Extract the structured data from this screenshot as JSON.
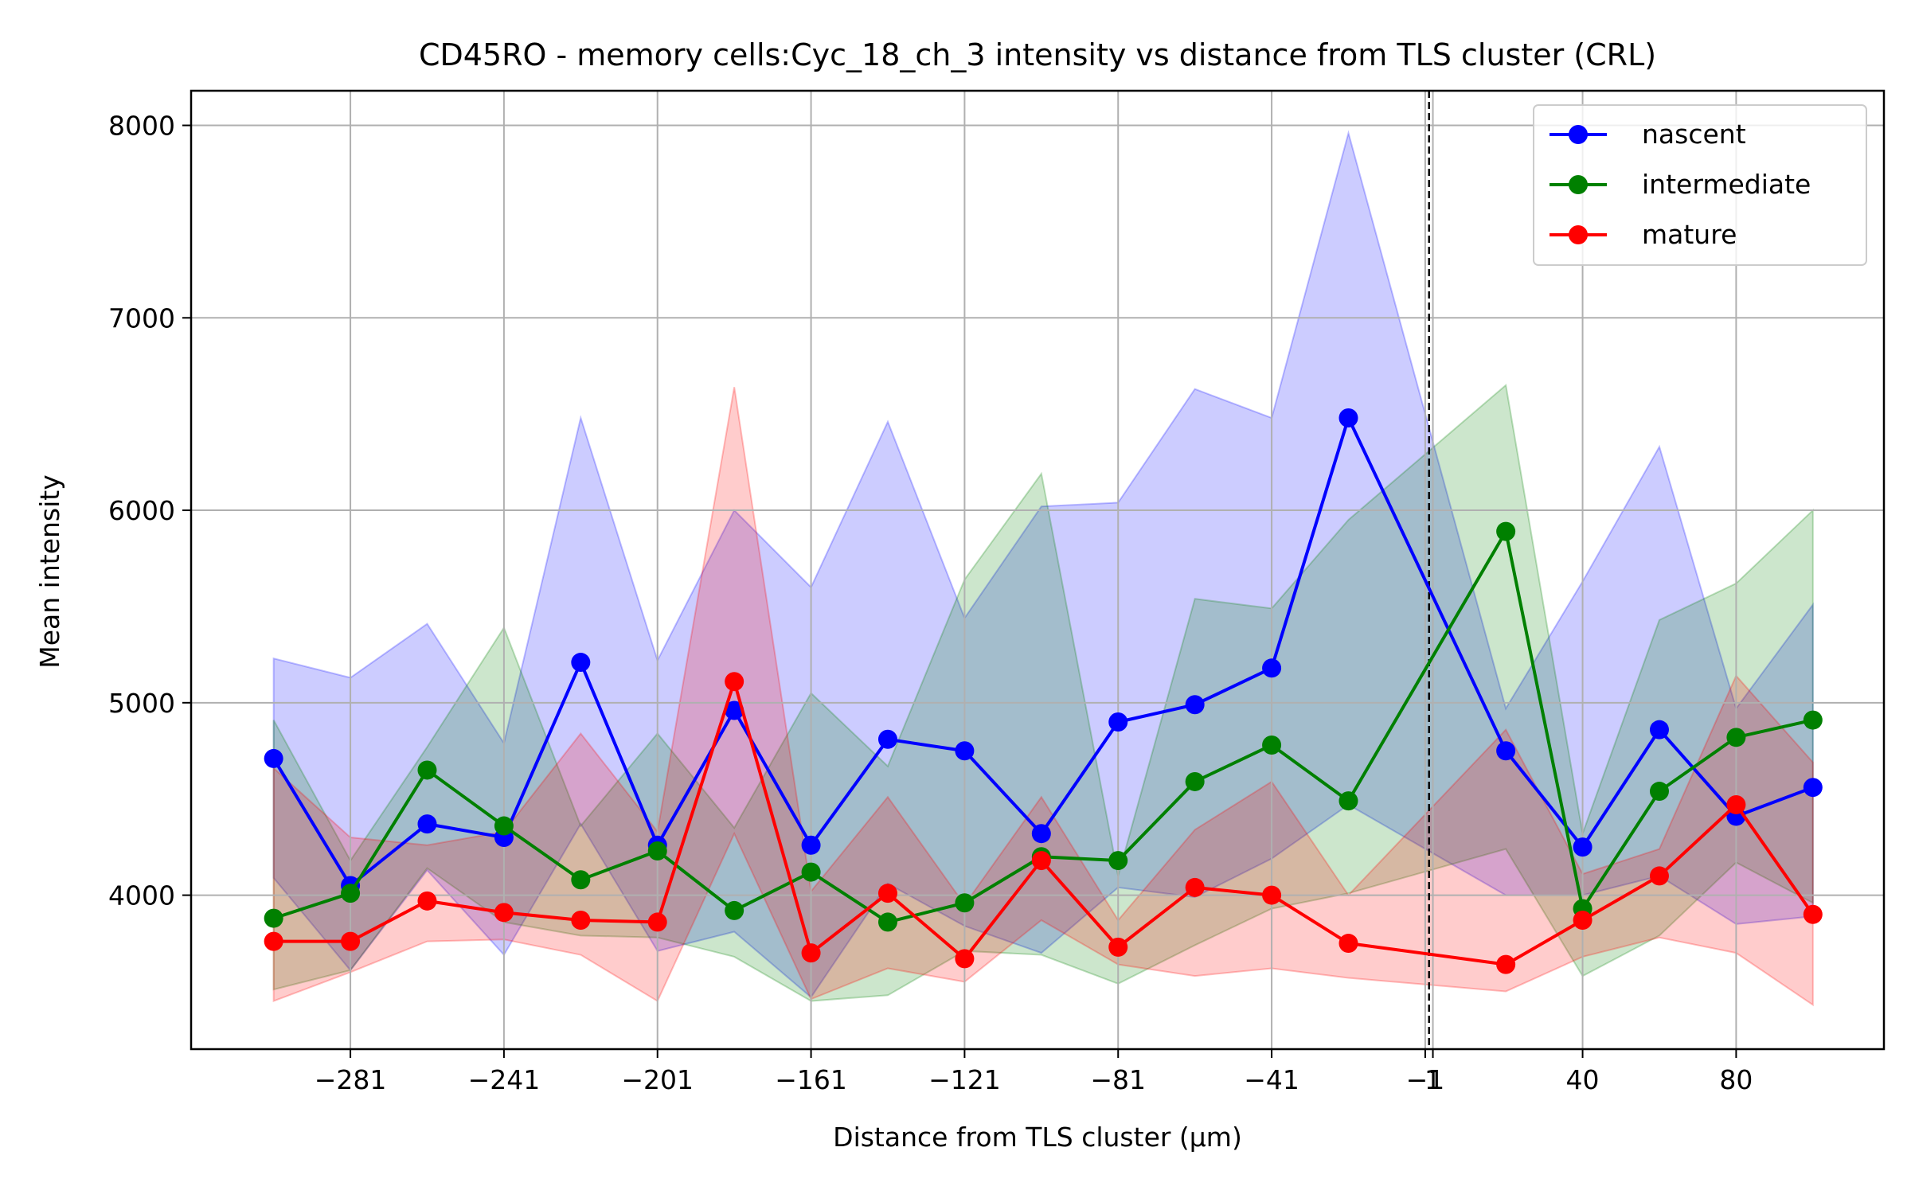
{
  "chart_data": {
    "type": "line",
    "title": "CD45RO - memory cells:Cyc_18_ch_3 intensity vs distance from TLS cluster (CRL)",
    "xlabel": "Distance from TLS cluster (μm)",
    "ylabel": "Mean intensity",
    "xlim": [
      -322.5,
      118.5
    ],
    "ylim": [
      3200,
      8180
    ],
    "x_ticks": [
      -281,
      -241,
      -201,
      -161,
      -121,
      -81,
      -41,
      -1,
      1,
      40,
      80
    ],
    "x_tick_labels": [
      "−281",
      "−241",
      "−201",
      "−161",
      "−121",
      "−81",
      "−41",
      "−1",
      "1",
      "40",
      "80"
    ],
    "y_ticks": [
      4000,
      5000,
      6000,
      7000,
      8000
    ],
    "y_tick_labels": [
      "4000",
      "5000",
      "6000",
      "7000",
      "8000"
    ],
    "grid": true,
    "vline_x": 0,
    "legend_position": "top-right",
    "series": [
      {
        "name": "nascent",
        "color": "#0000ff",
        "x": [
          -301,
          -281,
          -261,
          -241,
          -221,
          -201,
          -181,
          -161,
          -141,
          -121,
          -101,
          -81,
          -61,
          -41,
          -21,
          20,
          40,
          60,
          80,
          100
        ],
        "values": [
          4710,
          4050,
          4370,
          4300,
          5210,
          4260,
          4960,
          4260,
          4810,
          4750,
          4320,
          4900,
          4990,
          5180,
          6480,
          4750,
          4250,
          4860,
          4410,
          4560
        ],
        "upper": [
          5230,
          5130,
          5410,
          4790,
          6480,
          5220,
          6000,
          5600,
          6460,
          5440,
          6020,
          6040,
          6630,
          6480,
          7960,
          4970,
          5630,
          6330,
          4970,
          5510
        ],
        "lower": [
          4090,
          3610,
          4130,
          3690,
          4370,
          3710,
          3810,
          3470,
          4060,
          3840,
          3700,
          4040,
          3990,
          4190,
          4470,
          4000,
          4000,
          4100,
          3850,
          3890
        ]
      },
      {
        "name": "intermediate",
        "color": "#008000",
        "x": [
          -301,
          -281,
          -261,
          -241,
          -221,
          -201,
          -181,
          -161,
          -141,
          -121,
          -101,
          -81,
          -61,
          -41,
          -21,
          20,
          40,
          60,
          80,
          100
        ],
        "values": [
          3880,
          4010,
          4650,
          4360,
          4080,
          4230,
          3920,
          4120,
          3860,
          3960,
          4200,
          4180,
          4590,
          4780,
          4490,
          5890,
          3930,
          4540,
          4820,
          4910
        ],
        "upper": [
          4910,
          4180,
          4770,
          5390,
          4360,
          4840,
          4350,
          5050,
          4670,
          5640,
          6190,
          4100,
          5540,
          5490,
          5950,
          6650,
          4320,
          5430,
          5620,
          6000
        ],
        "lower": [
          3510,
          3610,
          4140,
          3860,
          3790,
          3780,
          3680,
          3450,
          3480,
          3710,
          3690,
          3540,
          3740,
          3930,
          4010,
          4240,
          3580,
          3790,
          4170,
          3960
        ]
      },
      {
        "name": "mature",
        "color": "#ff0000",
        "x": [
          -301,
          -281,
          -261,
          -241,
          -221,
          -201,
          -181,
          -161,
          -141,
          -121,
          -101,
          -81,
          -61,
          -41,
          -21,
          20,
          40,
          60,
          80,
          100
        ],
        "values": [
          3760,
          3760,
          3970,
          3910,
          3870,
          3860,
          5110,
          3700,
          4010,
          3670,
          4180,
          3730,
          4040,
          4000,
          3750,
          3640,
          3870,
          4100,
          4470,
          3900
        ],
        "upper": [
          4660,
          4300,
          4260,
          4330,
          4840,
          4330,
          6640,
          4020,
          4510,
          3950,
          4510,
          3870,
          4340,
          4590,
          4000,
          4860,
          4110,
          4240,
          5140,
          4690
        ],
        "lower": [
          3450,
          3600,
          3760,
          3770,
          3690,
          3450,
          4320,
          3460,
          3620,
          3550,
          3870,
          3640,
          3580,
          3620,
          3570,
          3500,
          3680,
          3780,
          3700,
          3430
        ]
      }
    ]
  }
}
